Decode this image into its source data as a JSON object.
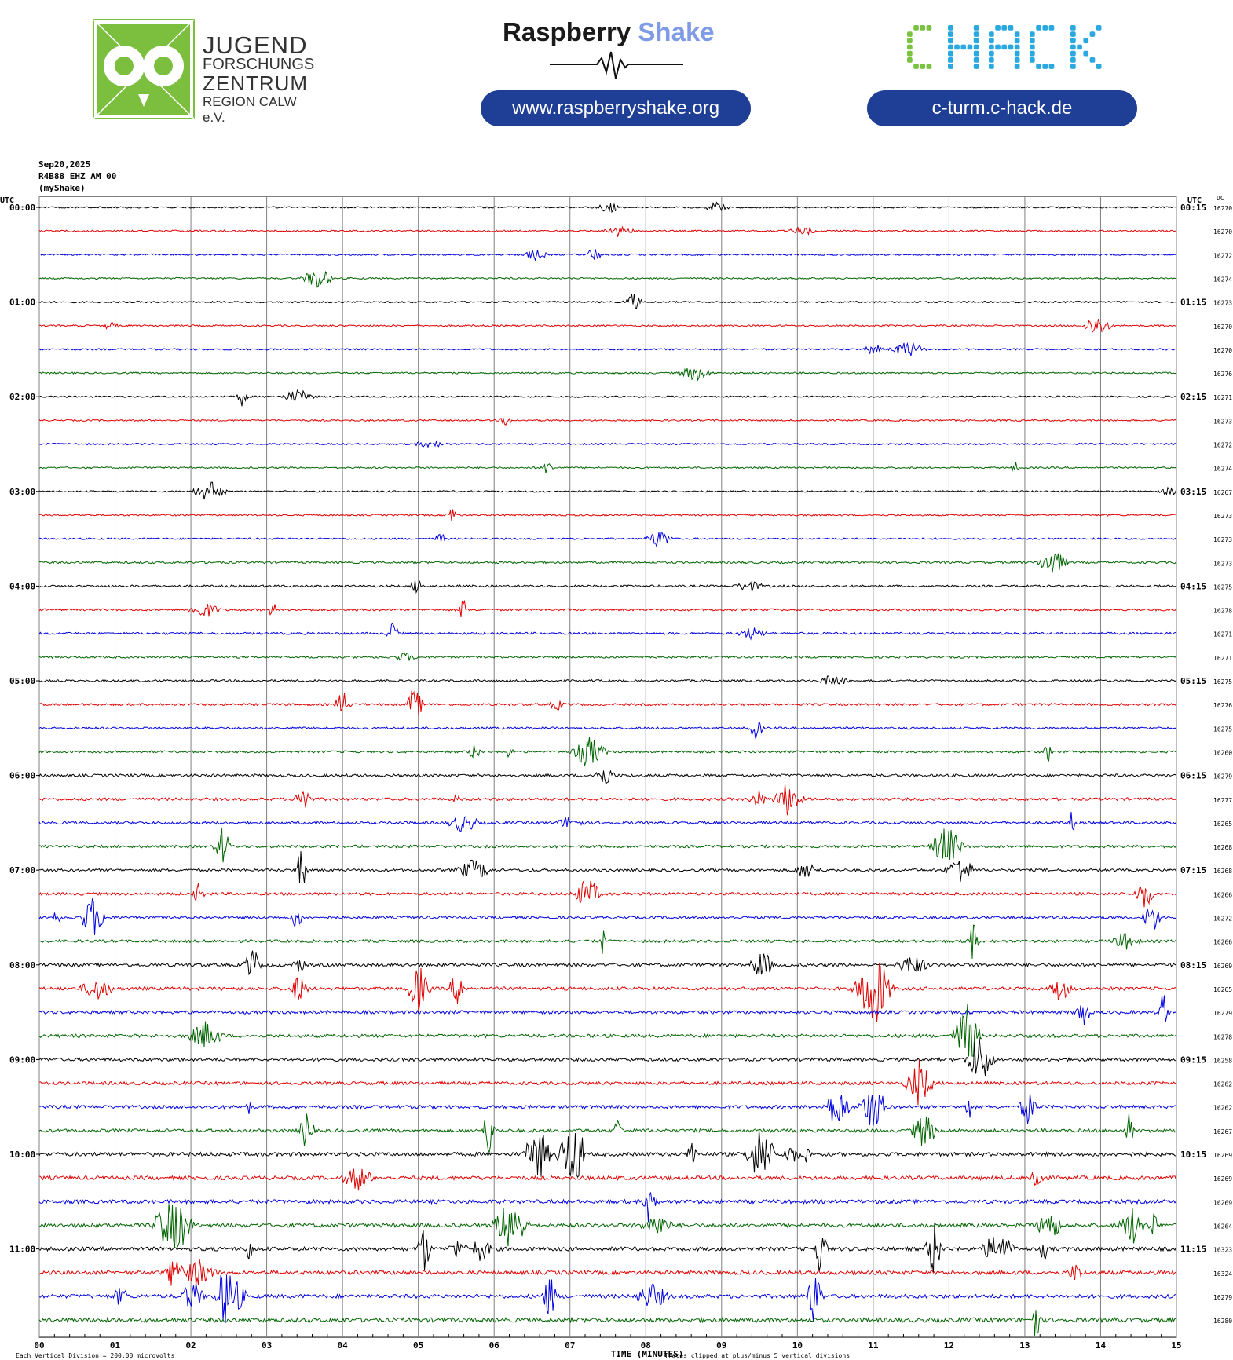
{
  "header": {
    "jfz": {
      "line1": "JUGEND",
      "line2": "FORSCHUNGS",
      "line3": "ZENTRUM",
      "line4": "REGION CALW e.V."
    },
    "raspberry": {
      "brand_dark": "Raspberry",
      "brand_accent": "Shake",
      "url": "www.raspberryshake.org"
    },
    "chack": {
      "logo_text": "CHACK",
      "url": "c-turm.c-hack.de"
    },
    "colors": {
      "pill": "#1f3f96",
      "owl_green": "#7cbf3f",
      "chack_green": "#7cc242",
      "chack_blue": "#2aa8e0",
      "shake_accent": "#7f9be6"
    }
  },
  "meta": {
    "date": "Sep20,2025",
    "station": "R4B88 EHZ AM 00",
    "source": "(myShake)"
  },
  "chart_data": {
    "type": "line",
    "title": "",
    "xlabel": "TIME (MINUTES)",
    "x_ticks": [
      "00",
      "01",
      "02",
      "03",
      "04",
      "05",
      "06",
      "07",
      "08",
      "09",
      "10",
      "11",
      "12",
      "13",
      "14",
      "15"
    ],
    "xlim": [
      0,
      15
    ],
    "left_axis_label": "UTC",
    "right_axis_label": "UTC",
    "dc_label": "DC",
    "left_hour_labels": [
      "00:00",
      "01:00",
      "02:00",
      "03:00",
      "04:00",
      "05:00",
      "06:00",
      "07:00",
      "08:00",
      "09:00",
      "10:00",
      "11:00"
    ],
    "right_hour_labels": [
      "00:15",
      "01:15",
      "02:15",
      "03:15",
      "04:15",
      "05:15",
      "06:15",
      "07:15",
      "08:15",
      "09:15",
      "10:15",
      "11:15"
    ],
    "trace_colors": [
      "#000000",
      "#e00000",
      "#0000e0",
      "#006400"
    ],
    "dc_values": [
      "16270",
      "16270",
      "16272",
      "16274",
      "16273",
      "16270",
      "16270",
      "16276",
      "16271",
      "16273",
      "16272",
      "16274",
      "16267",
      "16273",
      "16273",
      "16273",
      "16275",
      "16278",
      "16271",
      "16271",
      "16275",
      "16276",
      "16275",
      "16260",
      "16279",
      "16277",
      "16265",
      "16268",
      "16268",
      "16266",
      "16272",
      "16266",
      "16269",
      "16265",
      "16279",
      "16278",
      "16258",
      "16262",
      "16262",
      "16267",
      "16269",
      "16269",
      "16269",
      "16264",
      "16323",
      "16324",
      "16279",
      "16280"
    ],
    "activity_level": [
      1,
      1,
      1,
      1,
      1,
      1,
      1,
      1,
      1,
      1,
      1,
      1,
      1,
      1,
      1,
      2,
      2,
      2,
      2,
      2,
      2,
      2,
      2,
      2,
      3,
      3,
      3,
      3,
      3,
      3,
      3,
      3,
      4,
      4,
      4,
      4,
      4,
      4,
      4,
      4,
      5,
      5,
      5,
      5,
      5,
      5,
      5,
      6
    ],
    "footer_left": "Each Vertical Division =  200.00 microvolts",
    "footer_right": "Traces clipped at plus/minus 5 vertical divisions",
    "grid": true
  }
}
